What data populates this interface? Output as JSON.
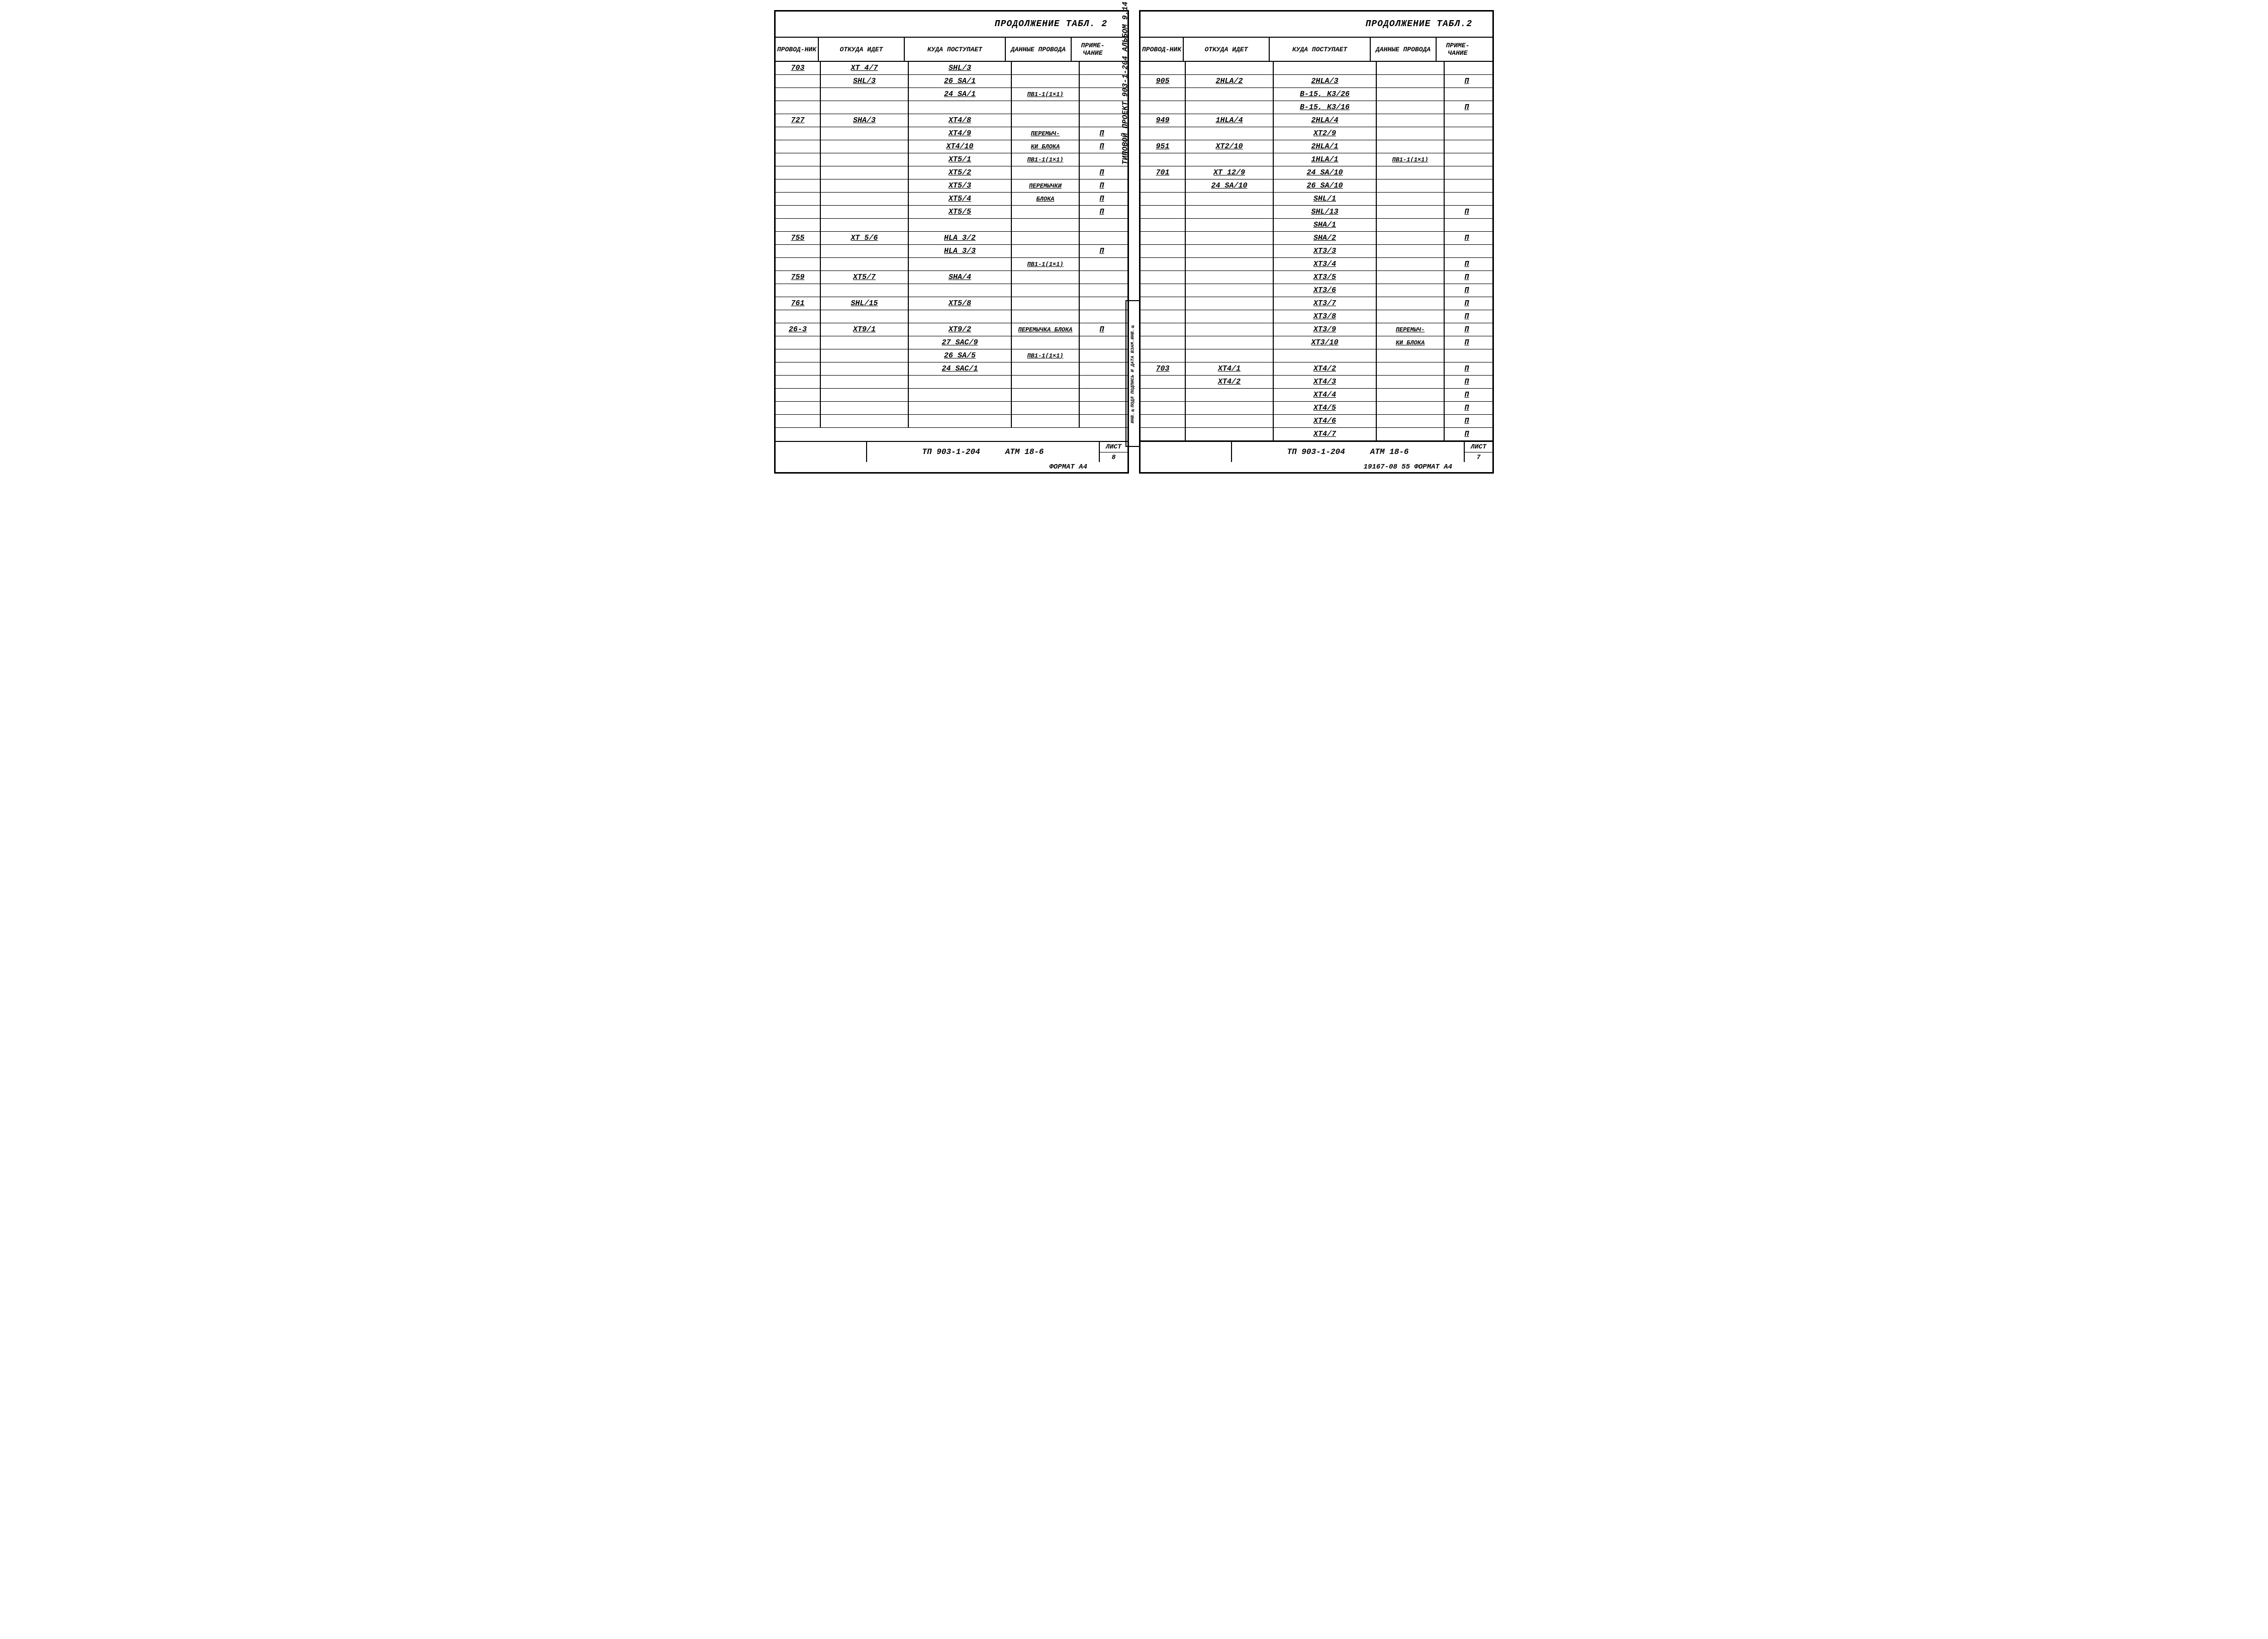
{
  "leftPage": {
    "title": "ПРОДОЛЖЕНИЕ ТАБЛ. 2",
    "headers": {
      "c1": "ПРОВОД-НИК",
      "c2": "ОТКУДА ИДЕТ",
      "c3": "КУДА ПОСТУПАЕТ",
      "c4": "ДАННЫЕ ПРОВОДА",
      "c5": "ПРИМЕ-ЧАНИЕ"
    },
    "rows": [
      [
        "703",
        "XT 4/7",
        "SHL/3",
        "",
        ""
      ],
      [
        "",
        "SHL/3",
        "26 SA/1",
        "",
        ""
      ],
      [
        "",
        "",
        "24 SA/1",
        "ПВ1-1(1×1)",
        ""
      ],
      [
        "",
        "",
        "",
        "",
        ""
      ],
      [
        "727",
        "SHA/3",
        "XT4/8",
        "",
        ""
      ],
      [
        "",
        "",
        "XT4/9",
        "ПЕРЕМЫЧ-",
        "П"
      ],
      [
        "",
        "",
        "XT4/10",
        "КИ БЛОКА",
        "П"
      ],
      [
        "",
        "",
        "XT5/1",
        "ПВ1-1(1×1)",
        ""
      ],
      [
        "",
        "",
        "XT5/2",
        "",
        "П"
      ],
      [
        "",
        "",
        "XT5/3",
        "ПЕРЕМЫЧКИ",
        "П"
      ],
      [
        "",
        "",
        "XT5/4",
        "БЛОКА",
        "П"
      ],
      [
        "",
        "",
        "XT5/5",
        "",
        "П"
      ],
      [
        "",
        "",
        "",
        "",
        ""
      ],
      [
        "755",
        "XT 5/6",
        "HLA 3/2",
        "",
        ""
      ],
      [
        "",
        "",
        "HLA 3/3",
        "",
        "П"
      ],
      [
        "",
        "",
        "",
        "ПВ1-1(1×1)",
        ""
      ],
      [
        "759",
        "XT5/7",
        "SHA/4",
        "",
        ""
      ],
      [
        "",
        "",
        "",
        "",
        ""
      ],
      [
        "761",
        "SHL/15",
        "XT5/8",
        "",
        ""
      ],
      [
        "",
        "",
        "",
        "",
        ""
      ],
      [
        "26-3",
        "XT9/1",
        "XT9/2",
        "ПЕРЕМЫЧКА БЛОКА",
        "П"
      ],
      [
        "",
        "",
        "27 SAC/9",
        "",
        ""
      ],
      [
        "",
        "",
        "26 SA/5",
        "ПВ1-1(1×1)",
        ""
      ],
      [
        "",
        "",
        "24 SAC/1",
        "",
        ""
      ],
      [
        "",
        "",
        "",
        "",
        ""
      ],
      [
        "",
        "",
        "",
        "",
        ""
      ],
      [
        "",
        "",
        "",
        "",
        ""
      ],
      [
        "",
        "",
        "",
        "",
        ""
      ]
    ],
    "footer": {
      "doc": "ТП 903-1-204",
      "code": "АТМ 18-6",
      "sheetLabel": "ЛИСТ",
      "sheet": "8",
      "format": "ФОРМАТ А4"
    }
  },
  "rightPage": {
    "title": "ПРОДОЛЖЕНИЕ ТАБЛ.2",
    "sideText": "ТИПОВОЙ ПРОЕКТ 903-1-204   АЛЬБОМ 9.14",
    "sideBox": "ИНВ.№ПОДЛ ПОДПИСЬ И ДАТА ВЗАМ.ИНВ.№",
    "headers": {
      "c1": "ПРОВОД-НИК",
      "c2": "ОТКУДА ИДЕТ",
      "c3": "КУДА ПОСТУПАЕТ",
      "c4": "ДАННЫЕ ПРОВОДА",
      "c5": "ПРИМЕ-ЧАНИЕ"
    },
    "rows": [
      [
        "",
        "",
        "",
        "",
        ""
      ],
      [
        "905",
        "2HLA/2",
        "2HLA/3",
        "",
        "П"
      ],
      [
        "",
        "",
        "В-15, К3/26",
        "",
        ""
      ],
      [
        "",
        "",
        "В-15, К3/16",
        "",
        "П"
      ],
      [
        "949",
        "1HLA/4",
        "2HLA/4",
        "",
        ""
      ],
      [
        "",
        "",
        "XT2/9",
        "",
        ""
      ],
      [
        "951",
        "XT2/10",
        "2HLA/1",
        "",
        ""
      ],
      [
        "",
        "",
        "1HLA/1",
        "ПВ1-1(1×1)",
        ""
      ],
      [
        "701",
        "XT 12/9",
        "24 SA/10",
        "",
        ""
      ],
      [
        "",
        "24 SA/10",
        "26 SA/10",
        "",
        ""
      ],
      [
        "",
        "",
        "SHL/1",
        "",
        ""
      ],
      [
        "",
        "",
        "SHL/13",
        "",
        "П"
      ],
      [
        "",
        "",
        "SHA/1",
        "",
        ""
      ],
      [
        "",
        "",
        "SHA/2",
        "",
        "П"
      ],
      [
        "",
        "",
        "XT3/3",
        "",
        ""
      ],
      [
        "",
        "",
        "XT3/4",
        "",
        "П"
      ],
      [
        "",
        "",
        "XT3/5",
        "",
        "П"
      ],
      [
        "",
        "",
        "XT3/6",
        "",
        "П"
      ],
      [
        "",
        "",
        "XT3/7",
        "",
        "П"
      ],
      [
        "",
        "",
        "XT3/8",
        "",
        "П"
      ],
      [
        "",
        "",
        "XT3/9",
        "ПЕРЕМЫЧ-",
        "П"
      ],
      [
        "",
        "",
        "XT3/10",
        "КИ БЛОКА",
        "П"
      ],
      [
        "",
        "",
        "",
        "",
        ""
      ],
      [
        "703",
        "XT4/1",
        "XT4/2",
        "",
        "П"
      ],
      [
        "",
        "XT4/2",
        "XT4/3",
        "",
        "П"
      ],
      [
        "",
        "",
        "XT4/4",
        "",
        "П"
      ],
      [
        "",
        "",
        "XT4/5",
        "",
        "П"
      ],
      [
        "",
        "",
        "XT4/6",
        "",
        "П"
      ],
      [
        "",
        "",
        "XT4/7",
        "",
        "П"
      ]
    ],
    "footer": {
      "doc": "ТП 903-1-204",
      "code": "АТМ 18-6",
      "sheetLabel": "ЛИСТ",
      "sheet": "7",
      "format": "19167-08  55   ФОРМАТ А4"
    }
  }
}
